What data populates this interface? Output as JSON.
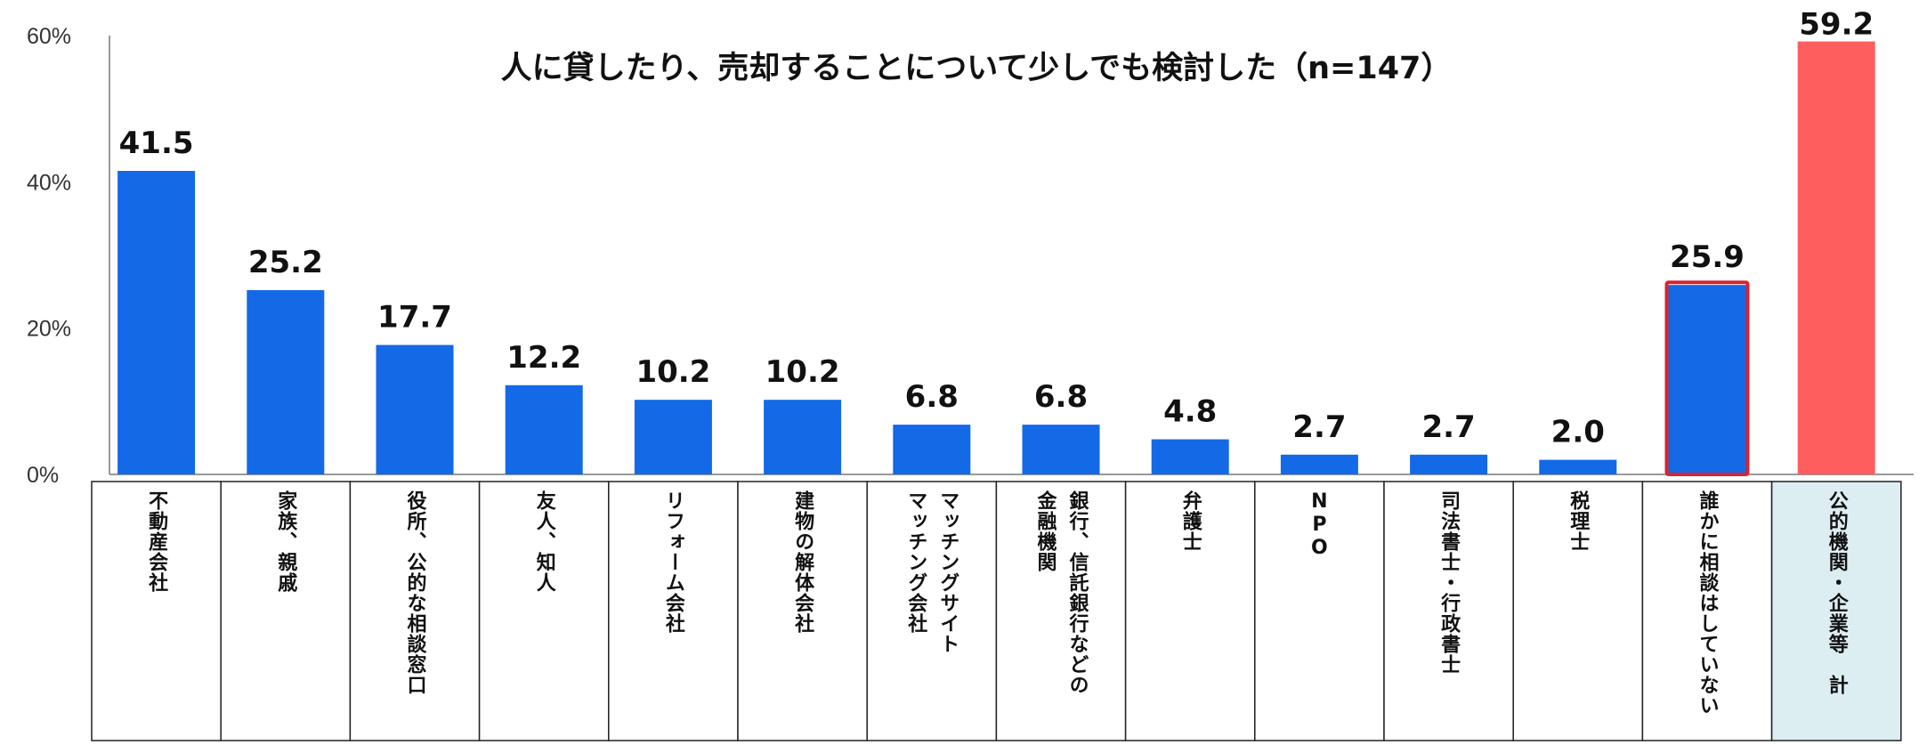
{
  "chart_data": {
    "type": "bar",
    "title": "人に貸したり、売却することについて少しでも検討した（n=147）",
    "categories": [
      "不動産会社",
      "家族、親戚",
      "役所、公的な相談窓口",
      "友人、知人",
      "リフォーム会社",
      "建物の解体会社",
      "マッチングサイト|マッチング会社",
      "銀行、信託銀行などの|金融機関",
      "弁護士",
      "NPO",
      "司法書士・行政書士",
      "税理士",
      "誰かに相談はしていない",
      "公的機関・企業等　計"
    ],
    "values": [
      41.5,
      25.2,
      17.7,
      12.2,
      10.2,
      10.2,
      6.8,
      6.8,
      4.8,
      2.7,
      2.7,
      2.0,
      25.9,
      59.2
    ],
    "value_labels": [
      "41.5",
      "25.2",
      "17.7",
      "12.2",
      "10.2",
      "10.2",
      "6.8",
      "6.8",
      "4.8",
      "2.7",
      "2.7",
      "2.0",
      "25.9",
      "59.2"
    ],
    "ylim": [
      0,
      60
    ],
    "yticks": [
      "0%",
      "20%",
      "40%",
      "60%"
    ],
    "ytick_values": [
      0,
      20,
      40,
      60
    ],
    "xlabel": "",
    "ylabel": "",
    "grid": false,
    "highlight_outline_index": 12,
    "highlight_total_index": 13,
    "colors": {
      "bar": "#1469E6",
      "total_bar": "#FF5E5E",
      "outline": "#D9232E",
      "total_cell_bg": "#DDEEF3",
      "axis": "#999999",
      "table_border": "#222222"
    }
  }
}
